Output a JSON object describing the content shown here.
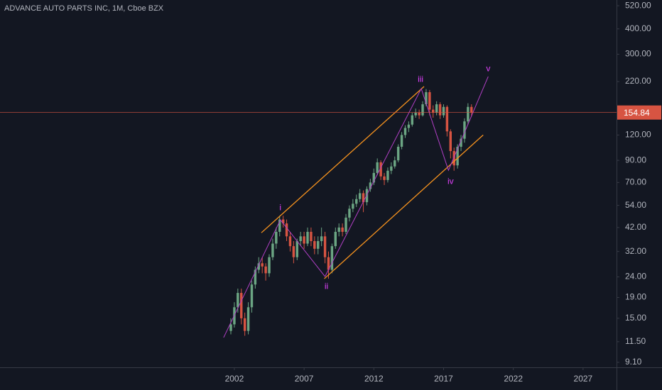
{
  "chart_data": {
    "type": "candlestick",
    "title": "ADVANCE AUTO PARTS INC, 1M, Cboe BZX",
    "log_scale": true,
    "xlim": [
      1985.2,
      2029.4
    ],
    "xticks": [
      2002,
      2007,
      2012,
      2017,
      2022,
      2027
    ],
    "ylim": [
      8.6,
      555
    ],
    "yticks": [
      {
        "value": 520,
        "label": "520.00"
      },
      {
        "value": 400,
        "label": "400.00"
      },
      {
        "value": 300,
        "label": "300.00"
      },
      {
        "value": 220,
        "label": "220.00"
      },
      {
        "value": 120,
        "label": "120.00"
      },
      {
        "value": 90,
        "label": "90.00"
      },
      {
        "value": 70,
        "label": "70.00"
      },
      {
        "value": 54,
        "label": "54.00"
      },
      {
        "value": 42,
        "label": "42.00"
      },
      {
        "value": 32,
        "label": "32.00"
      },
      {
        "value": 24,
        "label": "24.00"
      },
      {
        "value": 19,
        "label": "19.00"
      },
      {
        "value": 15,
        "label": "15.00"
      },
      {
        "value": 11.5,
        "label": "11.50"
      },
      {
        "value": 9.1,
        "label": "9.10"
      }
    ],
    "up_color": "#6ba583",
    "down_color": "#d75442",
    "x": [
      2001.75,
      2002.0,
      2002.25,
      2002.5,
      2002.75,
      2003.0,
      2003.25,
      2003.5,
      2003.75,
      2004.0,
      2004.25,
      2004.5,
      2004.75,
      2005.0,
      2005.25,
      2005.5,
      2005.75,
      2006.0,
      2006.25,
      2006.5,
      2006.75,
      2007.0,
      2007.25,
      2007.5,
      2007.75,
      2008.0,
      2008.25,
      2008.5,
      2008.75,
      2009.0,
      2009.25,
      2009.5,
      2009.75,
      2010.0,
      2010.25,
      2010.5,
      2010.75,
      2011.0,
      2011.25,
      2011.5,
      2011.75,
      2012.0,
      2012.25,
      2012.5,
      2012.75,
      2013.0,
      2013.25,
      2013.5,
      2013.75,
      2014.0,
      2014.25,
      2014.5,
      2014.75,
      2015.0,
      2015.25,
      2015.5,
      2015.75,
      2016.0,
      2016.25,
      2016.5,
      2016.75,
      2017.0,
      2017.25,
      2017.5,
      2017.75,
      2018.0,
      2018.25,
      2018.5,
      2018.75,
      2019.0
    ],
    "open": [
      13,
      14,
      17,
      20,
      15,
      13,
      17,
      22,
      26,
      28,
      27,
      25,
      30,
      35,
      40,
      46,
      44,
      38,
      34,
      30,
      36,
      38,
      35,
      40,
      36,
      33,
      36,
      38,
      30,
      26,
      34,
      40,
      42,
      40,
      47,
      52,
      55,
      58,
      62,
      56,
      65,
      70,
      78,
      88,
      75,
      72,
      80,
      84,
      90,
      105,
      120,
      130,
      135,
      150,
      155,
      150,
      170,
      195,
      160,
      155,
      170,
      150,
      165,
      125,
      100,
      85,
      105,
      115,
      140,
      165
    ],
    "high": [
      15,
      18,
      21,
      21,
      16,
      18,
      23,
      27,
      30,
      30,
      28,
      31,
      37,
      42,
      48,
      48,
      46,
      40,
      36,
      37,
      40,
      40,
      42,
      42,
      38,
      38,
      42,
      40,
      32,
      35,
      42,
      44,
      44,
      49,
      54,
      58,
      61,
      65,
      64,
      67,
      73,
      82,
      92,
      90,
      78,
      83,
      88,
      94,
      108,
      124,
      134,
      140,
      155,
      162,
      160,
      176,
      202,
      200,
      168,
      176,
      174,
      170,
      168,
      128,
      104,
      108,
      120,
      145,
      172,
      170
    ],
    "low": [
      12.5,
      13.5,
      16,
      14,
      12.3,
      12.5,
      16,
      21,
      25,
      25,
      23,
      24,
      29,
      33,
      38,
      42,
      36,
      32,
      28,
      29,
      34,
      33,
      34,
      34,
      31,
      31,
      34,
      28,
      23.5,
      25,
      33,
      38,
      38,
      39,
      45,
      50,
      53,
      56,
      50,
      54,
      63,
      68,
      76,
      72,
      68,
      70,
      77,
      82,
      88,
      102,
      116,
      124,
      132,
      146,
      144,
      148,
      166,
      150,
      146,
      150,
      144,
      146,
      118,
      92,
      80,
      82,
      100,
      110,
      135,
      148
    ],
    "close": [
      14,
      17,
      20,
      15,
      13,
      17,
      22,
      26,
      28,
      27,
      25,
      30,
      35,
      40,
      46,
      44,
      38,
      34,
      30,
      36,
      38,
      35,
      40,
      36,
      33,
      36,
      38,
      30,
      26,
      34,
      40,
      42,
      40,
      47,
      52,
      55,
      58,
      62,
      56,
      65,
      70,
      78,
      88,
      75,
      72,
      80,
      84,
      90,
      105,
      120,
      130,
      135,
      150,
      155,
      150,
      170,
      195,
      160,
      155,
      170,
      150,
      165,
      125,
      100,
      85,
      105,
      115,
      140,
      165,
      155
    ],
    "last_price": {
      "value": 154.84,
      "label": "154.84"
    },
    "last_price_color": "#d75442",
    "wave_path": {
      "color": "#b03fc4",
      "x": [
        2001.23,
        2005.3,
        2008.5,
        2015.4,
        2017.35,
        2020.2
      ],
      "y": [
        12.05,
        45.8,
        24.1,
        203,
        80.4,
        233
      ]
    },
    "channel_color": "#f7931e",
    "channel_lines": [
      {
        "x": [
          2003.94,
          2015.6
        ],
        "y": [
          39.6,
          208
        ]
      },
      {
        "x": [
          2008.45,
          2019.84
        ],
        "y": [
          23.5,
          120
        ]
      }
    ],
    "annotation_color": "#e040fb",
    "annotations": [
      {
        "text": "i",
        "x": 2005.3,
        "y": 52.5
      },
      {
        "text": "ii",
        "x": 2008.6,
        "y": 21.5
      },
      {
        "text": "iii",
        "x": 2015.35,
        "y": 225
      },
      {
        "text": "iv",
        "x": 2017.5,
        "y": 70.7
      },
      {
        "text": "v",
        "x": 2020.2,
        "y": 254
      }
    ]
  }
}
